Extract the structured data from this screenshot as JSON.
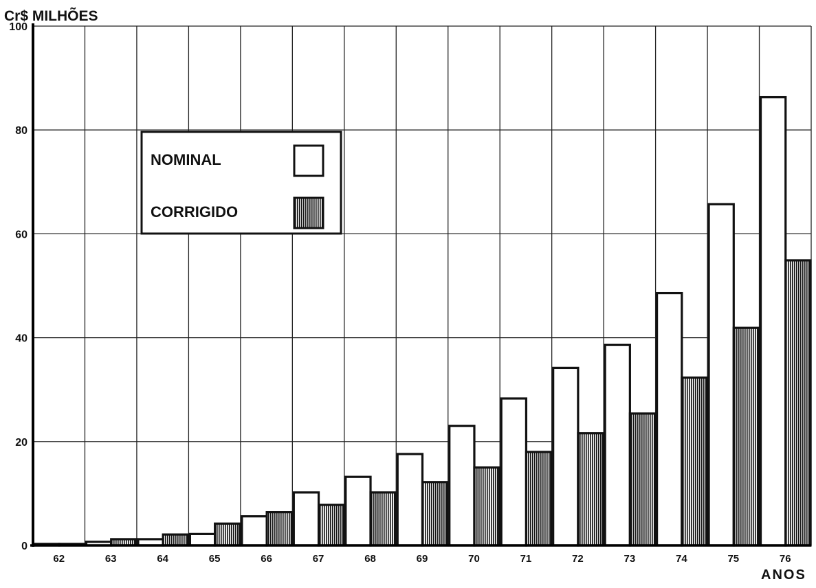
{
  "chart_data": {
    "type": "bar",
    "ylabel": "Cr$ MILHÕES",
    "xlabel": "ANOS",
    "ylim": [
      0,
      100
    ],
    "yticks": [
      "0",
      "20",
      "40",
      "60",
      "80",
      "100"
    ],
    "grid": true,
    "legend_position": "upper-left",
    "categories": [
      "62",
      "63",
      "64",
      "65",
      "66",
      "67",
      "68",
      "69",
      "70",
      "71",
      "72",
      "73",
      "74",
      "75",
      "76"
    ],
    "series": [
      {
        "name": "NOMINAL",
        "fill": "#ffffff",
        "values": [
          0.3,
          0.7,
          1.2,
          2.2,
          5.6,
          10.2,
          13.2,
          17.6,
          23,
          28.3,
          34.2,
          38.6,
          48.6,
          65.7,
          86.3
        ]
      },
      {
        "name": "CORRIGIDO",
        "fill": "#1a1a1a",
        "values": [
          0.3,
          1.2,
          2.1,
          4.2,
          6.4,
          7.8,
          10.2,
          12.2,
          15,
          18,
          21.6,
          25.4,
          32.3,
          41.9,
          54.9
        ]
      }
    ]
  }
}
